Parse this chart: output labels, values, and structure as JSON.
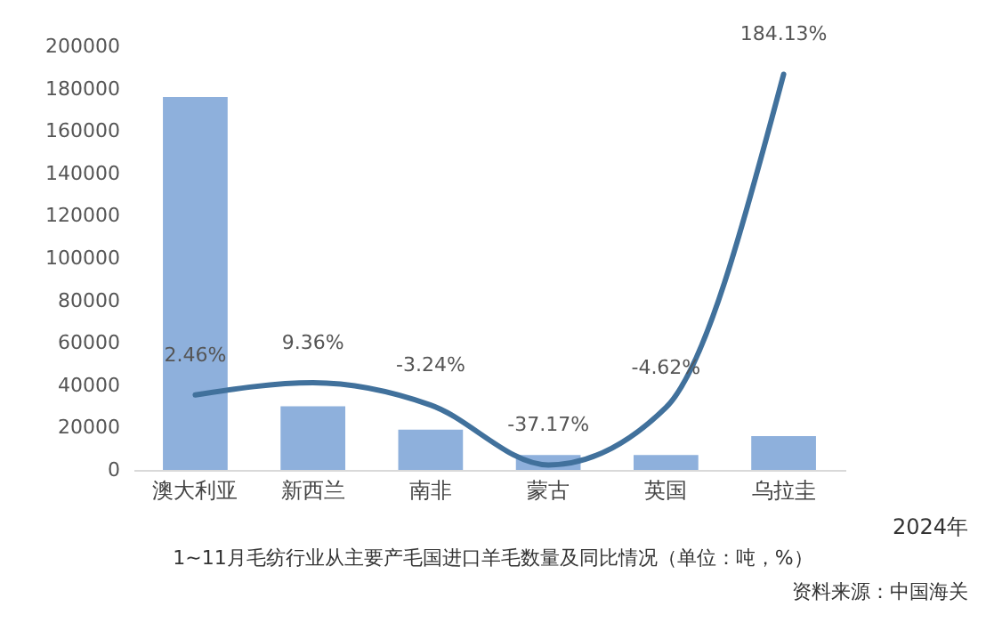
{
  "chart_data": {
    "type": "bar",
    "title": "1~11月毛纺行业从主要产毛国进口羊毛数量及同比情况（单位：吨，%）",
    "annotations": [
      "2024年",
      "资料来源：中国海关"
    ],
    "categories": [
      "澳大利亚",
      "新西兰",
      "南非",
      "蒙古",
      "英国",
      "乌拉圭"
    ],
    "ylim": [
      0,
      200000
    ],
    "yticks": [
      0,
      20000,
      40000,
      60000,
      80000,
      100000,
      120000,
      140000,
      160000,
      180000,
      200000
    ],
    "series": [
      {
        "color": "#8eb0dc",
        "values": [
          176000,
          30000,
          19000,
          7000,
          7000,
          16000
        ]
      },
      {
        "type": "line",
        "axis": "y2",
        "color": "#41719c",
        "values": [
          2.46,
          9.36,
          -3.24,
          -37.17,
          -4.62,
          184.13
        ],
        "value_labels": [
          "2.46%",
          "9.36%",
          "-3.24%",
          "-37.17%",
          "-4.62%",
          "184.13%"
        ]
      }
    ]
  }
}
